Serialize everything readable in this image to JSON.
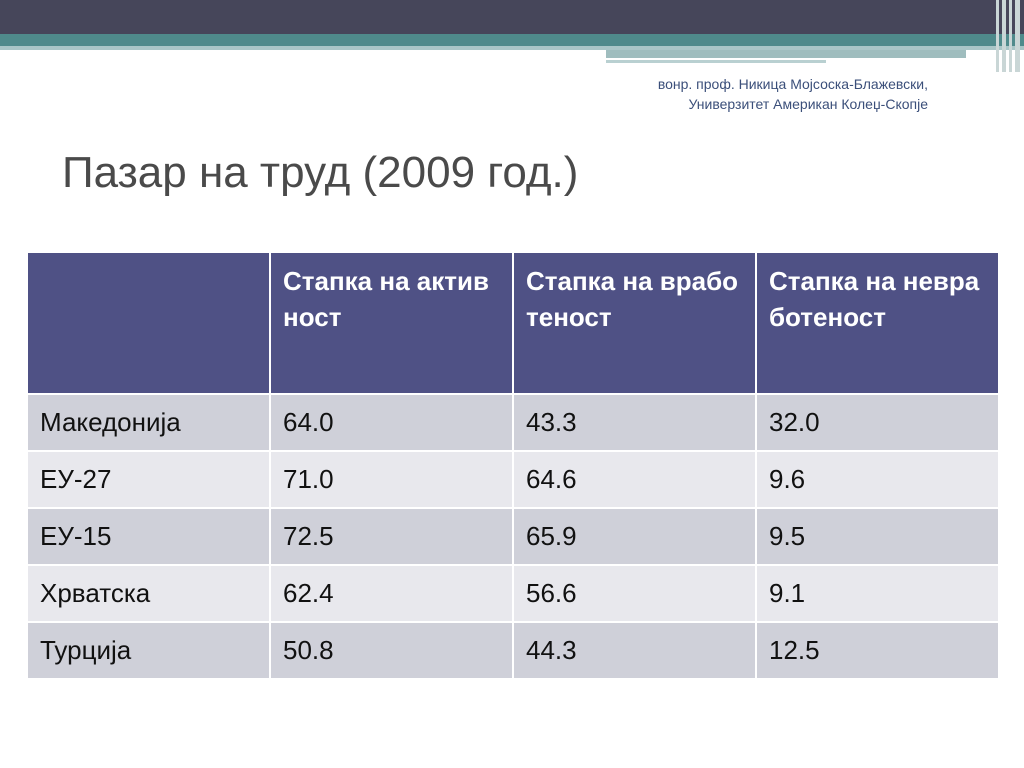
{
  "slide": {
    "author_line1": "вонр. проф. Никица Мојсоска-Блажевски,",
    "author_line2": "Универзитет Американ Колеџ-Скопје",
    "title": "Пазар на труд (2009 год.)",
    "colors": {
      "top_bar": "#46465a",
      "teal_bar": "#4f8a8b",
      "header_fill": "#4f5185",
      "row_odd": "#cfd0d9",
      "row_even": "#e8e8ed"
    }
  },
  "table": {
    "headers": [
      "",
      "Стапка на активност",
      "Стапка на вработеност",
      "Стапка на невработеност"
    ],
    "rows": [
      [
        "Македонија",
        "64.0",
        "43.3",
        "32.0"
      ],
      [
        "ЕУ-27",
        "71.0",
        "64.6",
        "9.6"
      ],
      [
        "ЕУ-15",
        "72.5",
        "65.9",
        "9.5"
      ],
      [
        "Хрватска",
        "62.4",
        "56.6",
        "9.1"
      ],
      [
        "Турција",
        "50.8",
        "44.3",
        "12.5"
      ]
    ]
  }
}
